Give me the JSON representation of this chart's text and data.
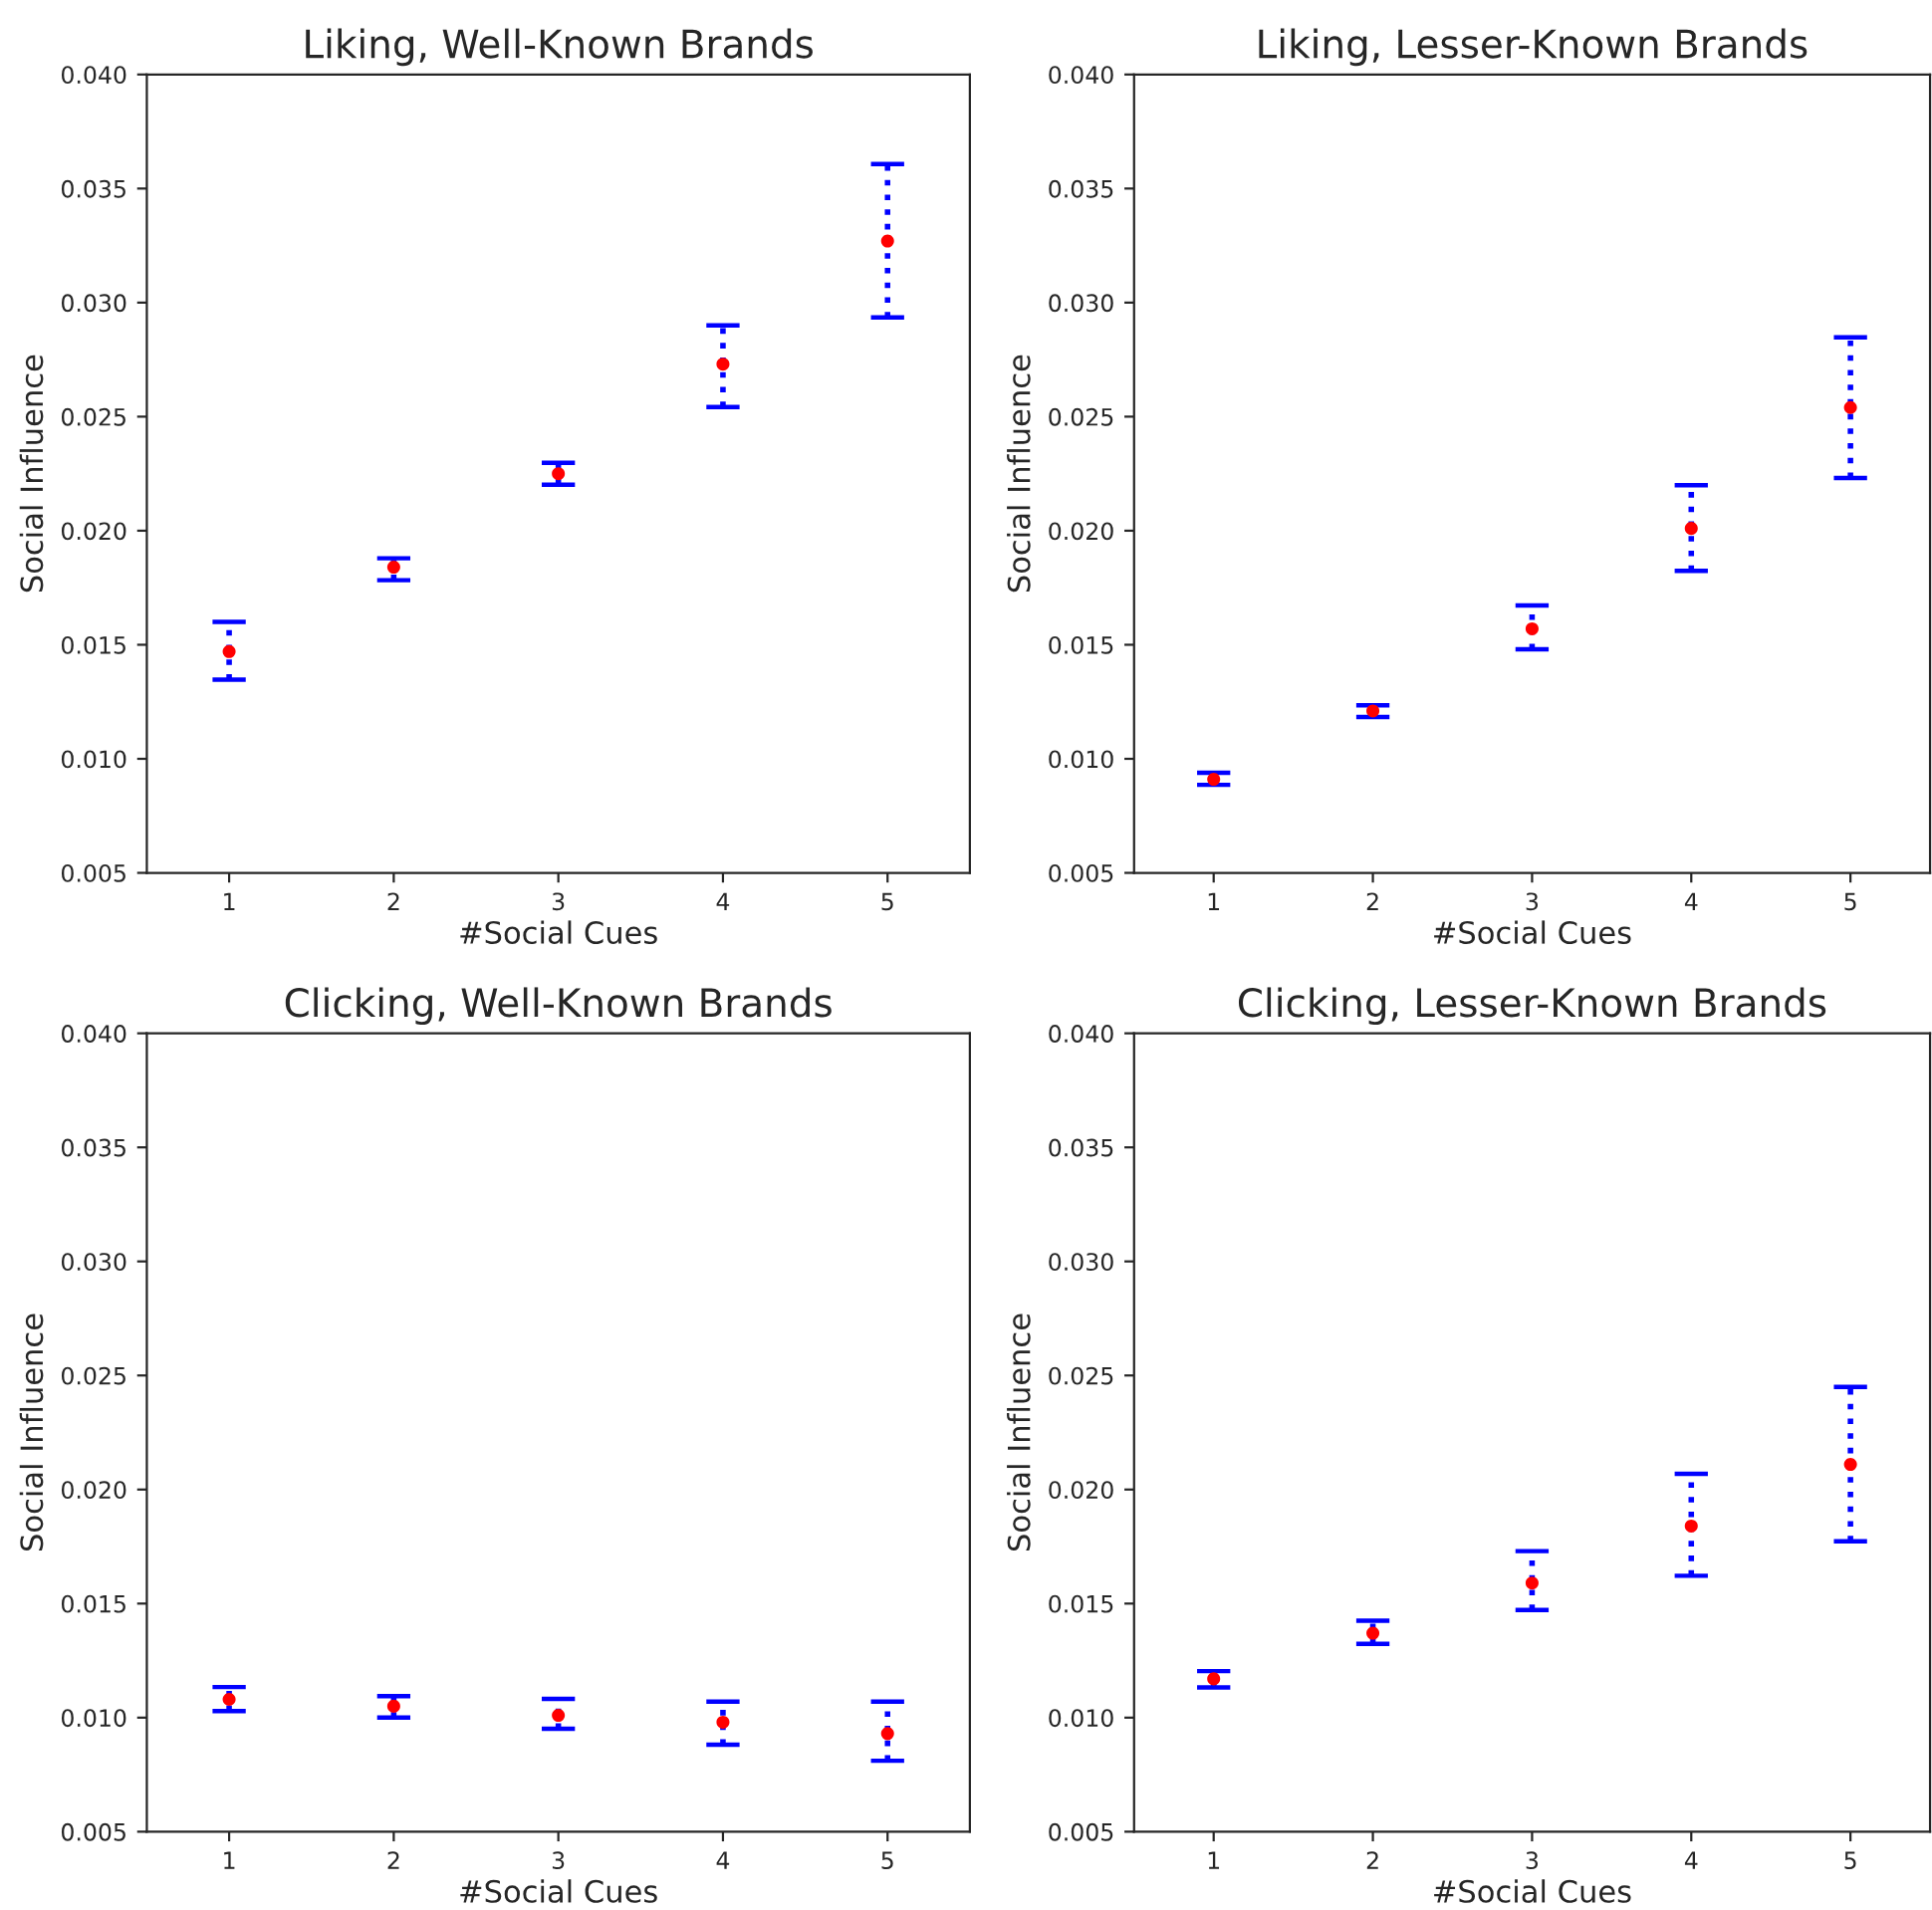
{
  "chart_data": [
    {
      "type": "scatter",
      "title": "Liking, Well-Known Brands",
      "xlabel": "#Social Cues",
      "ylabel": "Social Influence",
      "x": [
        1,
        2,
        3,
        4,
        5
      ],
      "xlim": [
        0.5,
        5.5
      ],
      "xticks": [
        1,
        2,
        3,
        4,
        5
      ],
      "ylim": [
        0.005,
        0.04
      ],
      "yticks": [
        {
          "value": 0.005,
          "label": "0.005"
        },
        {
          "value": 0.01,
          "label": "0.010"
        },
        {
          "value": 0.015,
          "label": "0.015"
        },
        {
          "value": 0.02,
          "label": "0.020"
        },
        {
          "value": 0.025,
          "label": "0.025"
        },
        {
          "value": 0.03,
          "label": "0.030"
        },
        {
          "value": 0.035,
          "label": "0.035"
        },
        {
          "value": 0.04,
          "label": "0.040"
        }
      ],
      "grid": false,
      "marker": "circle",
      "series": [
        {
          "color": "#ff0000",
          "values": [
            0.0147,
            0.0184,
            0.0225,
            0.0273,
            0.0327
          ],
          "errors": [
            [
              0.01347,
              0.016
            ],
            [
              0.01783,
              0.01879
            ],
            [
              0.02202,
              0.02298
            ],
            [
              0.02542,
              0.029
            ],
            [
              0.02935,
              0.03607
            ]
          ]
        }
      ]
    },
    {
      "type": "scatter",
      "title": "Liking, Lesser-Known Brands",
      "xlabel": "#Social Cues",
      "ylabel": "Social Influence",
      "x": [
        1,
        2,
        3,
        4,
        5
      ],
      "xlim": [
        0.5,
        5.5
      ],
      "xticks": [
        1,
        2,
        3,
        4,
        5
      ],
      "ylim": [
        0.005,
        0.04
      ],
      "yticks": [
        {
          "value": 0.005,
          "label": "0.005"
        },
        {
          "value": 0.01,
          "label": "0.010"
        },
        {
          "value": 0.015,
          "label": "0.015"
        },
        {
          "value": 0.02,
          "label": "0.020"
        },
        {
          "value": 0.025,
          "label": "0.025"
        },
        {
          "value": 0.03,
          "label": "0.030"
        },
        {
          "value": 0.035,
          "label": "0.035"
        },
        {
          "value": 0.04,
          "label": "0.040"
        }
      ],
      "grid": false,
      "marker": "circle",
      "series": [
        {
          "color": "#ff0000",
          "values": [
            0.0091,
            0.0121,
            0.0157,
            0.0201,
            0.0254
          ],
          "errors": [
            [
              0.00886,
              0.00939
            ],
            [
              0.01183,
              0.01235
            ],
            [
              0.0148,
              0.01672
            ],
            [
              0.01824,
              0.02199
            ],
            [
              0.02231,
              0.02848
            ]
          ]
        }
      ]
    },
    {
      "type": "scatter",
      "title": "Clicking, Well-Known Brands",
      "xlabel": "#Social Cues",
      "ylabel": "Social Influence",
      "x": [
        1,
        2,
        3,
        4,
        5
      ],
      "xlim": [
        0.5,
        5.5
      ],
      "xticks": [
        1,
        2,
        3,
        4,
        5
      ],
      "ylim": [
        0.005,
        0.04
      ],
      "yticks": [
        {
          "value": 0.005,
          "label": "0.005"
        },
        {
          "value": 0.01,
          "label": "0.010"
        },
        {
          "value": 0.015,
          "label": "0.015"
        },
        {
          "value": 0.02,
          "label": "0.020"
        },
        {
          "value": 0.025,
          "label": "0.025"
        },
        {
          "value": 0.03,
          "label": "0.030"
        },
        {
          "value": 0.035,
          "label": "0.035"
        },
        {
          "value": 0.04,
          "label": "0.040"
        }
      ],
      "grid": false,
      "marker": "circle",
      "series": [
        {
          "color": "#ff0000",
          "values": [
            0.0108,
            0.0105,
            0.0101,
            0.0098,
            0.0093
          ],
          "errors": [
            [
              0.01029,
              0.01134
            ],
            [
              0.01,
              0.01094
            ],
            [
              0.00951,
              0.01082
            ],
            [
              0.00881,
              0.0107
            ],
            [
              0.00811,
              0.0107
            ]
          ]
        }
      ]
    },
    {
      "type": "scatter",
      "title": "Clicking, Lesser-Known Brands",
      "xlabel": "#Social Cues",
      "ylabel": "Social Influence",
      "x": [
        1,
        2,
        3,
        4,
        5
      ],
      "xlim": [
        0.5,
        5.5
      ],
      "xticks": [
        1,
        2,
        3,
        4,
        5
      ],
      "ylim": [
        0.005,
        0.04
      ],
      "yticks": [
        {
          "value": 0.005,
          "label": "0.005"
        },
        {
          "value": 0.01,
          "label": "0.010"
        },
        {
          "value": 0.015,
          "label": "0.015"
        },
        {
          "value": 0.02,
          "label": "0.020"
        },
        {
          "value": 0.025,
          "label": "0.025"
        },
        {
          "value": 0.03,
          "label": "0.030"
        },
        {
          "value": 0.035,
          "label": "0.035"
        },
        {
          "value": 0.04,
          "label": "0.040"
        }
      ],
      "grid": false,
      "marker": "circle",
      "series": [
        {
          "color": "#ff0000",
          "values": [
            0.0117,
            0.0137,
            0.0159,
            0.0184,
            0.0211
          ],
          "errors": [
            [
              0.01132,
              0.01204
            ],
            [
              0.01323,
              0.01425
            ],
            [
              0.01472,
              0.0173
            ],
            [
              0.01622,
              0.02069
            ],
            [
              0.01773,
              0.0245
            ]
          ]
        }
      ]
    }
  ]
}
